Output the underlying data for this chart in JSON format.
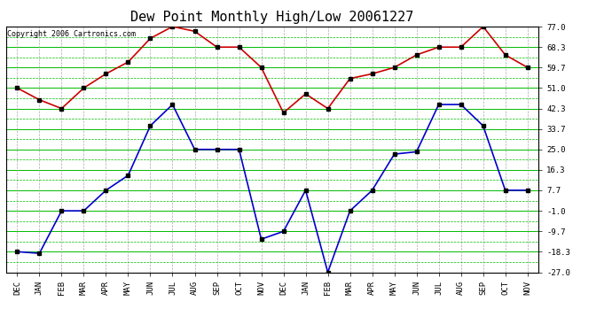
{
  "title": "Dew Point Monthly High/Low 20061227",
  "copyright": "Copyright 2006 Cartronics.com",
  "x_labels": [
    "DEC",
    "JAN",
    "FEB",
    "MAR",
    "APR",
    "MAY",
    "JUN",
    "JUL",
    "AUG",
    "SEP",
    "OCT",
    "NOV",
    "DEC",
    "JAN",
    "FEB",
    "MAR",
    "APR",
    "MAY",
    "JUN",
    "JUL",
    "AUG",
    "SEP",
    "OCT",
    "NOV"
  ],
  "high_data": [
    51.0,
    46.0,
    42.3,
    51.0,
    57.0,
    62.0,
    72.0,
    77.0,
    75.0,
    68.3,
    68.3,
    59.7,
    40.5,
    48.5,
    42.3,
    55.0,
    57.0,
    59.7,
    65.0,
    68.3,
    68.3,
    77.0,
    65.0,
    59.7
  ],
  "low_data": [
    -18.3,
    -19.0,
    -1.0,
    -1.0,
    7.7,
    14.0,
    35.0,
    44.0,
    25.0,
    25.0,
    25.0,
    -13.0,
    -9.7,
    7.7,
    -27.0,
    -1.0,
    7.7,
    23.0,
    24.0,
    44.0,
    44.0,
    35.0,
    7.7,
    7.7
  ],
  "y_ticks": [
    77.0,
    68.3,
    59.7,
    51.0,
    42.3,
    33.7,
    25.0,
    16.3,
    7.7,
    -1.0,
    -9.7,
    -18.3,
    -27.0
  ],
  "y_min": -27.0,
  "y_max": 77.0,
  "high_color": "#cc0000",
  "low_color": "#0000cc",
  "hgrid_color": "#00bb00",
  "vgrid_color": "#aaaaaa",
  "bg_color": "#ffffff",
  "marker": "s",
  "marker_color": "#000000",
  "marker_size": 2.5,
  "line_width": 1.2,
  "title_fontsize": 11,
  "tick_fontsize": 6.5,
  "copyright_fontsize": 6
}
